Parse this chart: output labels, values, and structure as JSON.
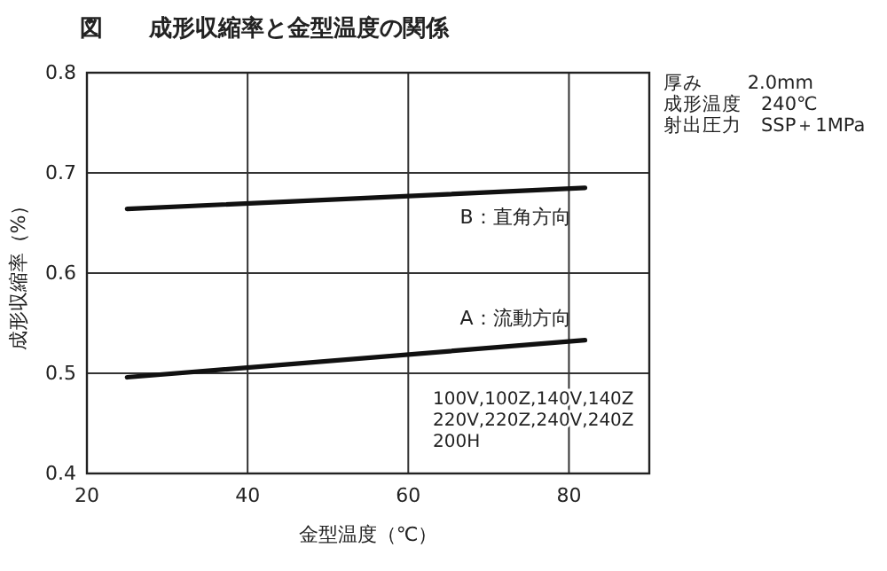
{
  "chart_data": {
    "type": "line",
    "title": "図　　成形収縮率と金型温度の関係",
    "xlabel": "金型温度（℃）",
    "ylabel": "成形収縮率（%）",
    "xlim": [
      20,
      90
    ],
    "xticks": [
      20,
      40,
      60,
      80
    ],
    "ylim": [
      0.4,
      0.8
    ],
    "yticks": [
      0.4,
      0.5,
      0.6,
      0.7,
      0.8
    ],
    "grid": true,
    "x": [
      25,
      82
    ],
    "marker": "none",
    "line_style": "solid",
    "series": [
      {
        "name": "B：直角方向",
        "color": "#111111",
        "values": [
          0.664,
          0.685
        ]
      },
      {
        "name": "A：流動方向",
        "color": "#111111",
        "values": [
          0.496,
          0.533
        ]
      }
    ],
    "annotations": [
      "厚み　　 2.0mm",
      "成形温度　240℃",
      "射出圧力　SSP＋1MPa",
      "100V,100Z,140V,140Z\n220V,220Z,240V,240Z\n200H"
    ]
  }
}
